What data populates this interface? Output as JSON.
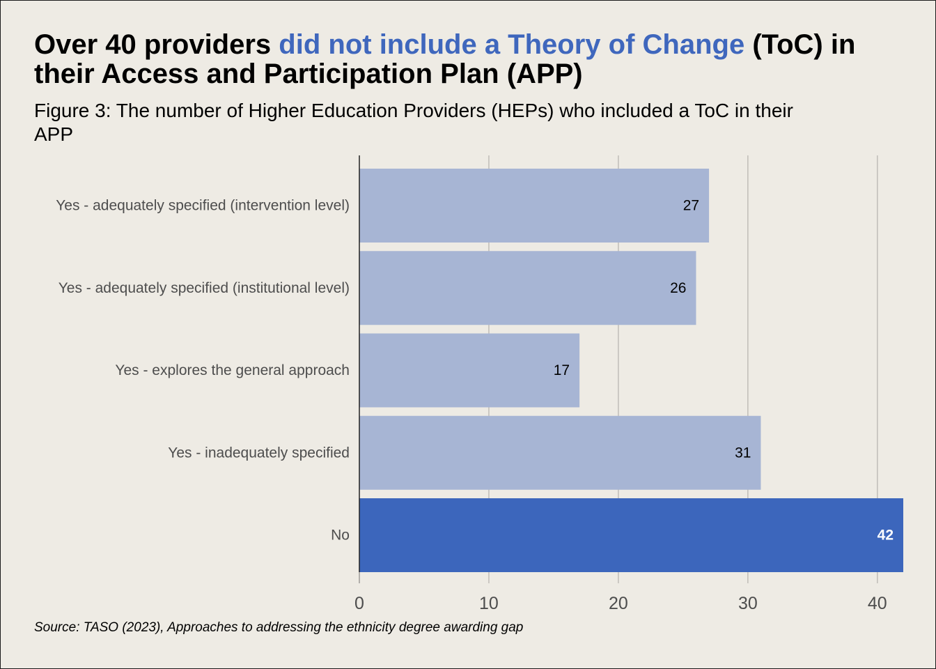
{
  "headline": {
    "part1": "Over 40 providers ",
    "accent": "did not include a Theory of Change",
    "part2": " (ToC) in their Access and Participation Plan (APP)"
  },
  "subtitle": "Figure 3: The number of Higher Education Providers (HEPs) who included a ToC in their APP",
  "source": "Source: TASO (2023), Approaches to addressing the ethnicity degree awarding gap",
  "colors": {
    "background": "#eeebe4",
    "bar_default": "#a7b5d4",
    "bar_highlight": "#3c66bc",
    "headline_accent": "#3f67bd",
    "gridline": "#c0bdb8",
    "axis_text": "#4d4d4d"
  },
  "chart_data": {
    "type": "bar",
    "orientation": "horizontal",
    "categories": [
      "Yes - adequately specified (intervention level)",
      "Yes - adequately specified (institutional level)",
      "Yes - explores the general approach",
      "Yes - inadequately specified",
      "No"
    ],
    "values": [
      27,
      26,
      17,
      31,
      42
    ],
    "highlight": "No",
    "xlim": [
      0,
      42
    ],
    "xticks": [
      0,
      10,
      20,
      30,
      40
    ],
    "xlabel": "",
    "ylabel": "",
    "grid": "vertical",
    "title": "Figure 3: The number of Higher Education Providers (HEPs) who included a ToC in their APP"
  }
}
